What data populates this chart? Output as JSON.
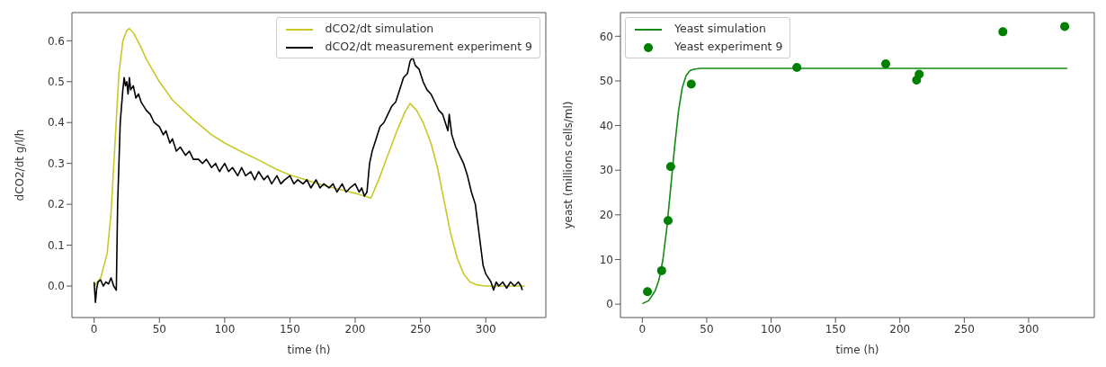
{
  "chart_data": [
    {
      "type": "line",
      "xlabel": "time (h)",
      "ylabel": "dCO2/dt  g/l/h",
      "xlim": [
        -17,
        346
      ],
      "ylim": [
        -0.077,
        0.669
      ],
      "xticks": [
        0,
        50,
        100,
        150,
        200,
        250,
        300
      ],
      "yticks": [
        {
          "value": 0,
          "label": "0.0"
        },
        0.1,
        0.2,
        0.3,
        0.4,
        0.5,
        0.6
      ],
      "grid": false,
      "legend": "top right",
      "series": [
        {
          "name": "dCO2/dt simulation",
          "color": "#c8c828",
          "x": [
            0,
            5,
            10,
            13,
            16,
            19,
            22,
            25,
            27,
            30,
            35,
            40,
            50,
            60,
            75,
            90,
            100,
            115,
            125,
            140,
            150,
            165,
            175,
            190,
            200,
            212,
            218,
            225,
            232,
            238,
            242,
            247,
            252,
            258,
            263,
            268,
            273,
            278,
            283,
            288,
            293,
            300,
            330
          ],
          "values": [
            0,
            0.02,
            0.08,
            0.18,
            0.35,
            0.52,
            0.6,
            0.625,
            0.63,
            0.62,
            0.59,
            0.555,
            0.5,
            0.455,
            0.41,
            0.37,
            0.35,
            0.325,
            0.31,
            0.285,
            0.272,
            0.257,
            0.247,
            0.235,
            0.227,
            0.215,
            0.26,
            0.32,
            0.38,
            0.425,
            0.447,
            0.43,
            0.4,
            0.35,
            0.29,
            0.21,
            0.13,
            0.07,
            0.03,
            0.01,
            0.003,
            0,
            0
          ]
        },
        {
          "name": "dCO2/dt measurement experiment 9",
          "color": "#000000",
          "x": [
            0,
            1,
            2,
            3,
            5,
            7,
            9,
            11,
            13,
            15,
            17,
            18,
            20,
            22,
            23,
            24,
            25,
            26,
            27,
            28,
            30,
            32,
            34,
            36,
            38,
            40,
            43,
            46,
            50,
            53,
            55,
            58,
            60,
            63,
            66,
            70,
            73,
            76,
            80,
            83,
            86,
            90,
            93,
            96,
            100,
            103,
            106,
            110,
            113,
            116,
            120,
            123,
            126,
            130,
            133,
            136,
            140,
            143,
            146,
            150,
            153,
            156,
            160,
            163,
            166,
            170,
            173,
            176,
            180,
            183,
            186,
            190,
            193,
            196,
            200,
            203,
            205,
            207,
            209,
            211,
            213,
            216,
            219,
            222,
            225,
            228,
            231,
            234,
            237,
            240,
            242,
            244,
            246,
            249,
            252,
            255,
            258,
            261,
            264,
            267,
            269,
            271,
            272,
            274,
            277,
            280,
            283,
            286,
            289,
            292,
            294,
            296,
            298,
            300,
            302,
            304,
            306,
            308,
            310,
            313,
            316,
            319,
            322,
            325,
            327,
            328
          ],
          "values": [
            0.01,
            -0.04,
            -0.005,
            0.01,
            0.015,
            0.0,
            0.01,
            0.005,
            0.02,
            0.0,
            -0.01,
            0.2,
            0.4,
            0.48,
            0.51,
            0.49,
            0.5,
            0.47,
            0.51,
            0.48,
            0.49,
            0.46,
            0.47,
            0.45,
            0.44,
            0.43,
            0.42,
            0.4,
            0.39,
            0.37,
            0.38,
            0.35,
            0.36,
            0.33,
            0.34,
            0.32,
            0.33,
            0.31,
            0.31,
            0.3,
            0.31,
            0.29,
            0.3,
            0.28,
            0.3,
            0.28,
            0.29,
            0.27,
            0.29,
            0.27,
            0.28,
            0.26,
            0.28,
            0.26,
            0.27,
            0.25,
            0.27,
            0.25,
            0.26,
            0.27,
            0.25,
            0.26,
            0.25,
            0.26,
            0.24,
            0.26,
            0.24,
            0.25,
            0.24,
            0.25,
            0.23,
            0.25,
            0.23,
            0.24,
            0.25,
            0.23,
            0.24,
            0.22,
            0.23,
            0.3,
            0.33,
            0.36,
            0.39,
            0.4,
            0.42,
            0.44,
            0.45,
            0.48,
            0.51,
            0.52,
            0.55,
            0.56,
            0.54,
            0.53,
            0.5,
            0.48,
            0.47,
            0.45,
            0.43,
            0.42,
            0.4,
            0.38,
            0.42,
            0.37,
            0.34,
            0.32,
            0.3,
            0.27,
            0.23,
            0.2,
            0.15,
            0.1,
            0.05,
            0.03,
            0.02,
            0.01,
            -0.01,
            0.01,
            0.0,
            0.01,
            -0.005,
            0.01,
            0.0,
            0.01,
            0.0,
            -0.01
          ]
        }
      ]
    },
    {
      "type": "line",
      "xlabel": "time (h)",
      "ylabel": "yeast (millions cells/ml)",
      "xlim": [
        -17,
        351
      ],
      "ylim": [
        -3,
        65.3
      ],
      "xticks": [
        0,
        50,
        100,
        150,
        200,
        250,
        300
      ],
      "yticks": [
        0,
        10,
        20,
        30,
        40,
        50,
        60
      ],
      "grid": false,
      "legend": "top left",
      "series": [
        {
          "name": "Yeast simulation",
          "color": "#138a13",
          "x": [
            0,
            5,
            10,
            13,
            16,
            19,
            22,
            25,
            28,
            31,
            34,
            37,
            40,
            45,
            50,
            100,
            200,
            330
          ],
          "values": [
            0.1,
            0.8,
            3,
            5.5,
            10,
            17,
            26,
            35,
            43,
            48.5,
            51.2,
            52.3,
            52.6,
            52.8,
            52.8,
            52.8,
            52.8,
            52.8
          ]
        },
        {
          "name": "Yeast experiment 9",
          "type": "scatter",
          "marker": "circle",
          "color": "#008000",
          "x": [
            4,
            15,
            20,
            22,
            38,
            120,
            189,
            213,
            215,
            280,
            328
          ],
          "values": [
            2.8,
            7.5,
            18.7,
            30.8,
            49.3,
            53,
            53.8,
            50.2,
            51.5,
            61,
            62.2
          ]
        }
      ]
    }
  ]
}
